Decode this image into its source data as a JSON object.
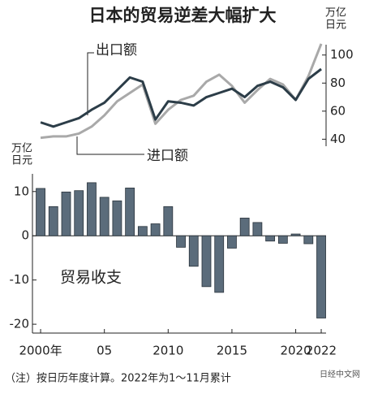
{
  "title": "日本的贸易逆差大幅扩大",
  "note": "（注）按日历年度计算。2022年为1～11月累计",
  "watermark": "日经中文网",
  "chart_data": [
    {
      "type": "line",
      "unit_lines": [
        "万亿",
        "日元"
      ],
      "x": [
        2000,
        2001,
        2002,
        2003,
        2004,
        2005,
        2006,
        2007,
        2008,
        2009,
        2010,
        2011,
        2012,
        2013,
        2014,
        2015,
        2016,
        2017,
        2018,
        2019,
        2020,
        2021,
        2022
      ],
      "xlim": [
        1999.36,
        2022.38
      ],
      "ylim": [
        35,
        112
      ],
      "yticks": [
        40,
        60,
        80,
        100
      ],
      "series": [
        {
          "name": "出口额",
          "color": "#2c3d48",
          "values": [
            52,
            49,
            52,
            55,
            61,
            66,
            75,
            84,
            81,
            54,
            67,
            66,
            64,
            70,
            73,
            76,
            70,
            78,
            81,
            77,
            68,
            83,
            90
          ]
        },
        {
          "name": "进口额",
          "color": "#a9a9a9",
          "values": [
            41,
            42,
            42,
            44,
            49,
            57,
            67,
            73,
            79,
            51,
            61,
            68,
            71,
            81,
            86,
            78,
            66,
            75,
            83,
            79,
            68,
            85,
            108
          ]
        }
      ]
    },
    {
      "type": "bar",
      "unit_lines": [
        "万亿",
        "日元"
      ],
      "label": "贸易收支",
      "x": [
        2000,
        2001,
        2002,
        2003,
        2004,
        2005,
        2006,
        2007,
        2008,
        2009,
        2010,
        2011,
        2012,
        2013,
        2014,
        2015,
        2016,
        2017,
        2018,
        2019,
        2020,
        2021,
        2022
      ],
      "xlim": [
        1999.36,
        2022.38
      ],
      "xticks": [
        {
          "value": 2000,
          "label": "2000年"
        },
        {
          "value": 2005,
          "label": "05"
        },
        2010,
        2015,
        2020,
        2022
      ],
      "ylim": [
        -22,
        14
      ],
      "yticks": [
        -20,
        -10,
        0,
        10
      ],
      "color": "#5b6c7b",
      "values": [
        10.7,
        6.6,
        9.9,
        10.2,
        12.0,
        8.7,
        7.9,
        10.8,
        2.1,
        2.7,
        6.6,
        -2.6,
        -6.9,
        -11.5,
        -12.8,
        -2.8,
        4.0,
        3.0,
        -1.2,
        -1.7,
        0.4,
        -1.8,
        -18.6
      ]
    }
  ]
}
